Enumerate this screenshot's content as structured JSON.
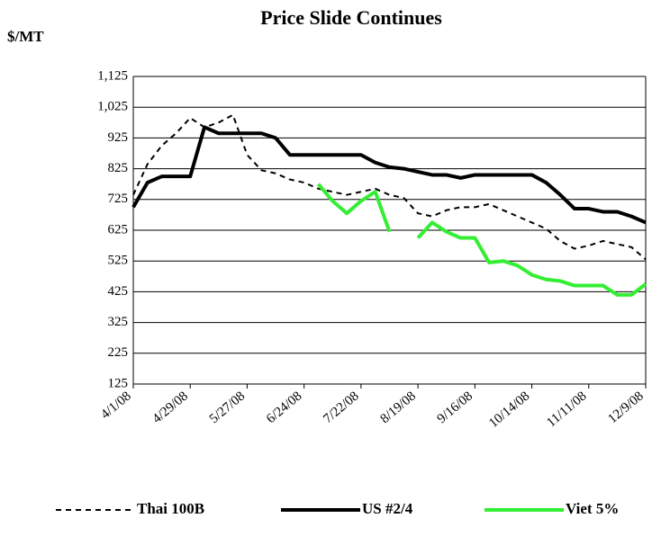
{
  "chart_data": {
    "type": "line",
    "title": "Price Slide Continues",
    "y_label": "$/MT",
    "categories": [
      "4/1/08",
      null,
      null,
      null,
      "4/29/08",
      null,
      null,
      null,
      "5/27/08",
      null,
      null,
      null,
      "6/24/08",
      null,
      null,
      null,
      "7/22/08",
      null,
      null,
      null,
      "8/19/08",
      null,
      null,
      null,
      "9/16/08",
      null,
      null,
      null,
      "10/14/08",
      null,
      null,
      null,
      "11/11/08",
      null,
      null,
      null,
      "12/9/08"
    ],
    "series": [
      {
        "name": "Thai 100B",
        "color": "#000000",
        "dash": true,
        "values": [
          740,
          840,
          900,
          940,
          990,
          960,
          975,
          1000,
          870,
          820,
          810,
          790,
          780,
          760,
          750,
          740,
          750,
          760,
          740,
          730,
          680,
          670,
          690,
          700,
          700,
          710,
          690,
          670,
          650,
          630,
          590,
          565,
          575,
          590,
          580,
          570,
          530
        ]
      },
      {
        "name": "US #2/4",
        "color": "#000000",
        "dash": false,
        "values": [
          700,
          780,
          800,
          800,
          800,
          960,
          940,
          940,
          940,
          940,
          925,
          870,
          870,
          870,
          870,
          870,
          870,
          845,
          830,
          825,
          815,
          805,
          805,
          795,
          805,
          805,
          805,
          805,
          805,
          780,
          740,
          695,
          695,
          685,
          685,
          670,
          650
        ]
      },
      {
        "name": "Viet 5%",
        "color": "#33ee33",
        "dash": false,
        "values": [
          null,
          null,
          null,
          null,
          null,
          null,
          null,
          null,
          null,
          null,
          null,
          null,
          null,
          775,
          720,
          680,
          720,
          750,
          620,
          null,
          600,
          650,
          620,
          600,
          600,
          520,
          525,
          510,
          480,
          465,
          460,
          445,
          445,
          445,
          415,
          415,
          450
        ]
      }
    ],
    "ylim": [
      125,
      1125
    ],
    "yticks": [
      125,
      225,
      325,
      425,
      525,
      625,
      725,
      825,
      925,
      {
        "value": 1025,
        "label": "1,025"
      },
      {
        "value": 1125,
        "label": "1,125"
      }
    ],
    "grid": true,
    "legend": "bottom"
  }
}
